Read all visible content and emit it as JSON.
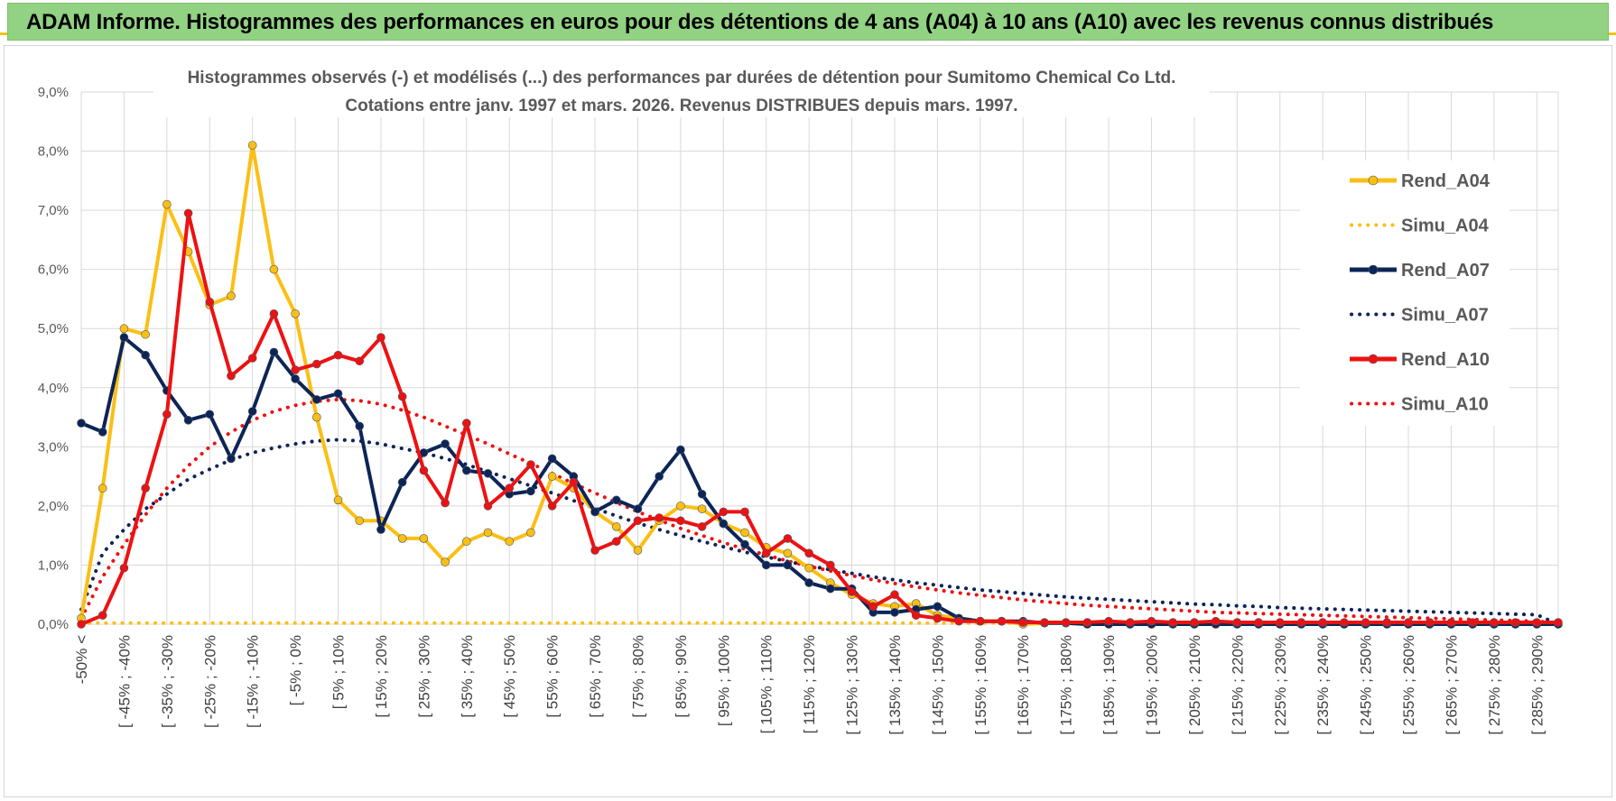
{
  "banner": {
    "title": "ADAM Informe. Histogrammes des performances en euros pour des détentions de 4 ans (A04) à 10 ans (A10) avec les revenus connus distribués"
  },
  "colors": {
    "banner_bg": "#92d283",
    "rend_a04": "#fbbf14",
    "rend_a07": "#0d2456",
    "rend_a10": "#ee1111",
    "grid": "#d9d9d9",
    "axis_text": "#595959"
  },
  "chart_data": {
    "type": "line",
    "title_line1": "Histogrammes observés (-) et modélisés (...) des performances par durées de détention pour Sumitomo Chemical Co Ltd.",
    "title_line2": "Cotations entre janv. 1997 et mars. 2026. Revenus DISTRIBUES depuis mars. 1997.",
    "xlabel": "",
    "ylabel": "",
    "ylim": [
      0,
      9
    ],
    "y_unit": "%",
    "y_ticks": [
      "0,0%",
      "1,0%",
      "2,0%",
      "3,0%",
      "4,0%",
      "5,0%",
      "6,0%",
      "7,0%",
      "8,0%",
      "9,0%"
    ],
    "grid": true,
    "legend_position": "right",
    "x_tick_labels": [
      "-50% <",
      "[ -45% ; -40%",
      "[ -35% ; -30%",
      "[ -25% ; -20%",
      "[ -15% ; -10%",
      "[ -5% ; 0%",
      "[ 5% ; 10%",
      "[ 15% ; 20%",
      "[ 25% ; 30%",
      "[ 35% ; 40%",
      "[ 45% ; 50%",
      "[ 55% ; 60%",
      "[ 65% ; 70%",
      "[ 75% ; 80%",
      "[ 85% ; 90%",
      "[ 95% ; 100%",
      "[ 105% ; 110%",
      "[ 115% ; 120%",
      "[ 125% ; 130%",
      "[ 135% ; 140%",
      "[ 145% ; 150%",
      "[ 155% ; 160%",
      "[ 165% ; 170%",
      "[ 175% ; 180%",
      "[ 185% ; 190%",
      "[ 195% ; 200%",
      "[ 205% ; 210%",
      "[ 215% ; 220%",
      "[ 225% ; 230%",
      "[ 235% ; 240%",
      "[ 245% ; 250%",
      "[ 255% ; 260%",
      "[ 265% ; 270%",
      "[ 275% ; 280%",
      "[ 285% ; 290%"
    ],
    "series": [
      {
        "name": "Rend_A04",
        "style": "solid",
        "markers": true,
        "color": "#fbbf14",
        "values": [
          0.1,
          2.3,
          5.0,
          4.9,
          7.1,
          6.3,
          5.4,
          5.55,
          8.1,
          6.0,
          5.25,
          3.5,
          2.1,
          1.75,
          1.75,
          1.45,
          1.45,
          1.05,
          1.4,
          1.55,
          1.4,
          1.55,
          2.5,
          2.3,
          1.9,
          1.65,
          1.25,
          1.75,
          2.0,
          1.95,
          1.7,
          1.55,
          1.3,
          1.2,
          0.95,
          0.7,
          0.5,
          0.35,
          0.3,
          0.35,
          0.15,
          0.1,
          0.05,
          0.05,
          0.0,
          0.02,
          0.02,
          0.0,
          0.0,
          0.0,
          0.0,
          0.0,
          0.0,
          0.0,
          0.0,
          0.0,
          0.0,
          0.0,
          0.0,
          0.0,
          0.0,
          0.0,
          0.0,
          0.0,
          0.0,
          0.0,
          0.0,
          0.0,
          0.0,
          0.0
        ]
      },
      {
        "name": "Simu_A04",
        "style": "dotted",
        "markers": false,
        "color": "#fbbf14",
        "values": [
          0.02,
          0.02,
          0.02,
          0.02,
          0.02,
          0.02,
          0.02,
          0.02,
          0.02,
          0.02,
          0.02,
          0.02,
          0.02,
          0.02,
          0.02,
          0.02,
          0.02,
          0.02,
          0.02,
          0.02,
          0.02,
          0.02,
          0.02,
          0.02,
          0.02,
          0.02,
          0.02,
          0.02,
          0.02,
          0.02,
          0.02,
          0.02,
          0.02,
          0.02,
          0.02,
          0.02,
          0.02,
          0.02,
          0.02,
          0.02,
          0.02,
          0.02,
          0.02,
          0.02,
          0.02,
          0.02,
          0.02,
          0.02,
          0.02,
          0.02,
          0.02,
          0.02,
          0.02,
          0.02,
          0.02,
          0.02,
          0.02,
          0.02,
          0.02,
          0.02,
          0.02,
          0.02,
          0.02,
          0.02,
          0.02,
          0.02,
          0.02,
          0.02,
          0.02,
          0.02
        ]
      },
      {
        "name": "Rend_A07",
        "style": "solid",
        "markers": true,
        "color": "#0d2456",
        "values": [
          3.4,
          3.25,
          4.85,
          4.55,
          3.95,
          3.45,
          3.55,
          2.8,
          3.6,
          4.6,
          4.15,
          3.8,
          3.9,
          3.35,
          1.6,
          2.4,
          2.9,
          3.05,
          2.6,
          2.55,
          2.2,
          2.25,
          2.8,
          2.5,
          1.9,
          2.1,
          1.95,
          2.5,
          2.95,
          2.2,
          1.7,
          1.35,
          1.0,
          1.0,
          0.7,
          0.6,
          0.6,
          0.2,
          0.2,
          0.25,
          0.3,
          0.1,
          0.05,
          0.05,
          0.05,
          0.02,
          0.02,
          0.0,
          0.0,
          0.0,
          0.0,
          0.0,
          0.0,
          0.0,
          0.0,
          0.0,
          0.0,
          0.0,
          0.0,
          0.0,
          0.0,
          0.0,
          0.0,
          0.0,
          0.0,
          0.0,
          0.0,
          0.0,
          0.0,
          0.0
        ]
      },
      {
        "name": "Simu_A07",
        "style": "dotted",
        "markers": false,
        "color": "#0d2456",
        "values": [
          0.25,
          1.2,
          1.6,
          1.95,
          2.2,
          2.45,
          2.62,
          2.78,
          2.9,
          2.98,
          3.05,
          3.1,
          3.12,
          3.1,
          3.05,
          2.97,
          2.9,
          2.8,
          2.7,
          2.58,
          2.46,
          2.34,
          2.22,
          2.09,
          1.96,
          1.83,
          1.71,
          1.6,
          1.5,
          1.4,
          1.31,
          1.22,
          1.14,
          1.06,
          0.99,
          0.92,
          0.86,
          0.8,
          0.75,
          0.7,
          0.66,
          0.62,
          0.58,
          0.55,
          0.52,
          0.49,
          0.46,
          0.44,
          0.42,
          0.4,
          0.38,
          0.36,
          0.34,
          0.33,
          0.31,
          0.3,
          0.28,
          0.27,
          0.26,
          0.25,
          0.24,
          0.23,
          0.22,
          0.21,
          0.2,
          0.19,
          0.18,
          0.17,
          0.16,
          0.0
        ]
      },
      {
        "name": "Rend_A10",
        "style": "solid",
        "markers": true,
        "color": "#ee1111",
        "values": [
          0.0,
          0.15,
          0.95,
          2.3,
          3.55,
          6.95,
          5.45,
          4.2,
          4.5,
          5.25,
          4.3,
          4.4,
          4.55,
          4.45,
          4.85,
          3.85,
          2.6,
          2.05,
          3.4,
          2.0,
          2.3,
          2.7,
          2.0,
          2.4,
          1.25,
          1.4,
          1.75,
          1.8,
          1.75,
          1.65,
          1.9,
          1.9,
          1.2,
          1.45,
          1.2,
          1.0,
          0.55,
          0.3,
          0.5,
          0.15,
          0.1,
          0.05,
          0.05,
          0.05,
          0.03,
          0.03,
          0.03,
          0.03,
          0.05,
          0.03,
          0.05,
          0.03,
          0.03,
          0.05,
          0.03,
          0.03,
          0.03,
          0.03,
          0.03,
          0.03,
          0.03,
          0.03,
          0.03,
          0.03,
          0.03,
          0.03,
          0.03,
          0.03,
          0.03,
          0.03
        ]
      },
      {
        "name": "Simu_A10",
        "style": "dotted",
        "markers": false,
        "color": "#ee1111",
        "values": [
          0.1,
          0.8,
          1.35,
          1.85,
          2.3,
          2.68,
          3.0,
          3.25,
          3.45,
          3.6,
          3.7,
          3.77,
          3.8,
          3.78,
          3.72,
          3.62,
          3.5,
          3.35,
          3.2,
          3.05,
          2.88,
          2.72,
          2.55,
          2.38,
          2.22,
          2.06,
          1.9,
          1.76,
          1.62,
          1.5,
          1.38,
          1.27,
          1.17,
          1.07,
          0.98,
          0.9,
          0.82,
          0.75,
          0.69,
          0.63,
          0.58,
          0.53,
          0.49,
          0.45,
          0.41,
          0.38,
          0.35,
          0.32,
          0.3,
          0.28,
          0.26,
          0.24,
          0.22,
          0.2,
          0.19,
          0.18,
          0.17,
          0.16,
          0.15,
          0.14,
          0.13,
          0.12,
          0.11,
          0.1,
          0.09,
          0.08,
          0.07,
          0.06,
          0.05,
          0.02
        ]
      }
    ]
  }
}
